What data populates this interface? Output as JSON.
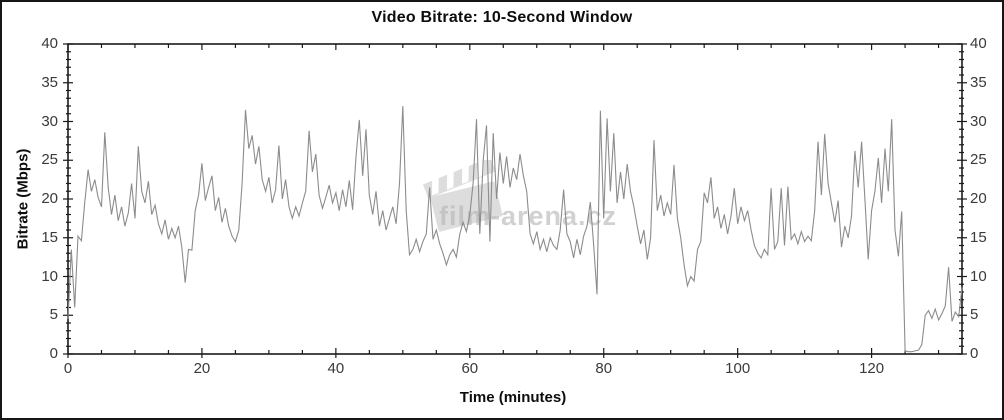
{
  "title": "Video Bitrate: 10-Second Window",
  "axes": {
    "x": {
      "label": "Time (minutes)",
      "min": 0,
      "max": 133.5,
      "major_ticks": [
        0,
        20,
        40,
        60,
        80,
        100,
        120
      ],
      "minor_step": 5
    },
    "y": {
      "label": "Bitrate (Mbps)",
      "min": 0,
      "max": 40,
      "major_ticks": [
        0,
        5,
        10,
        15,
        20,
        25,
        30,
        35,
        40
      ],
      "minor_step": 1,
      "mirrored_right_axis": true
    }
  },
  "watermark": {
    "text": "film-arena.cz",
    "icon": "clapperboard-icon"
  },
  "colors": {
    "background": "#ffffff",
    "frame": "#1a1a1a",
    "line": "#8c8c8c",
    "tick_label": "#3a3a3a",
    "watermark": "#b5b5b5"
  },
  "chart_data": {
    "type": "line",
    "title": "Video Bitrate: 10-Second Window",
    "xlabel": "Time (minutes)",
    "ylabel": "Bitrate (Mbps)",
    "xlim": [
      0,
      133.5
    ],
    "ylim": [
      0,
      40
    ],
    "grid": false,
    "legend": false,
    "x_start": 0,
    "x_step": 0.5,
    "series": [
      {
        "name": "bitrate_mbps",
        "values": [
          4.5,
          13.5,
          6.0,
          15.2,
          14.6,
          19.5,
          23.8,
          21.0,
          22.5,
          20.2,
          19.0,
          28.6,
          21.5,
          18.0,
          20.5,
          17.2,
          19.0,
          16.5,
          18.2,
          22.0,
          17.5,
          26.8,
          21.0,
          19.5,
          22.3,
          18.0,
          19.2,
          16.8,
          15.5,
          17.3,
          14.8,
          16.2,
          15.0,
          16.5,
          13.8,
          9.2,
          13.5,
          13.4,
          18.5,
          20.5,
          24.6,
          19.8,
          21.5,
          23.0,
          18.5,
          20.2,
          17.0,
          18.8,
          16.5,
          15.2,
          14.5,
          16.0,
          22.0,
          31.5,
          26.5,
          28.2,
          24.5,
          26.8,
          22.5,
          21.0,
          22.8,
          19.5,
          21.2,
          26.9,
          20.0,
          22.5,
          19.0,
          17.5,
          19.0,
          17.8,
          19.5,
          21.0,
          28.8,
          23.5,
          25.8,
          20.5,
          18.8,
          20.2,
          21.8,
          19.5,
          20.8,
          18.5,
          21.2,
          19.0,
          22.4,
          18.6,
          25.5,
          30.2,
          23.0,
          29.0,
          20.5,
          18.0,
          21.0,
          16.5,
          18.5,
          16.0,
          17.5,
          19.0,
          16.8,
          22.0,
          32.0,
          18.5,
          12.8,
          13.5,
          14.8,
          13.2,
          14.5,
          15.5,
          21.5,
          14.8,
          16.0,
          14.2,
          13.0,
          11.5,
          12.8,
          13.5,
          12.5,
          15.5,
          17.0,
          15.8,
          18.0,
          22.0,
          30.3,
          15.5,
          25.0,
          29.5,
          14.5,
          28.5,
          20.0,
          26.0,
          22.0,
          25.5,
          21.5,
          24.0,
          22.5,
          25.8,
          23.0,
          21.0,
          15.5,
          14.2,
          15.8,
          13.5,
          14.8,
          13.2,
          15.0,
          14.0,
          13.5,
          16.0,
          21.2,
          15.5,
          14.5,
          12.4,
          14.8,
          12.8,
          15.2,
          16.5,
          19.6,
          14.0,
          7.7,
          31.4,
          17.5,
          30.4,
          21.0,
          28.5,
          19.5,
          23.5,
          20.0,
          24.5,
          21.0,
          19.0,
          16.5,
          14.2,
          16.0,
          12.2,
          15.0,
          27.6,
          18.5,
          20.5,
          17.8,
          19.5,
          18.0,
          24.4,
          17.5,
          15.0,
          11.5,
          8.8,
          10.0,
          9.4,
          13.5,
          14.5,
          20.8,
          19.5,
          22.8,
          17.5,
          19.0,
          16.2,
          18.0,
          15.5,
          17.8,
          21.4,
          16.8,
          19.0,
          17.2,
          18.5,
          16.0,
          14.0,
          13.0,
          12.4,
          13.5,
          12.8,
          21.4,
          13.5,
          14.5,
          21.4,
          14.0,
          21.6,
          14.8,
          15.5,
          14.2,
          15.8,
          14.5,
          15.2,
          14.6,
          18.5,
          27.4,
          20.5,
          28.4,
          22.0,
          19.5,
          17.0,
          19.8,
          13.8,
          16.5,
          15.0,
          17.8,
          26.2,
          21.5,
          27.4,
          20.0,
          12.2,
          18.5,
          21.0,
          25.3,
          19.5,
          26.5,
          21.0,
          30.3,
          16.0,
          12.6,
          18.4,
          0.4,
          0.3,
          0.3,
          0.4,
          0.5,
          1.2,
          5.0,
          5.6,
          4.6,
          5.8,
          4.4,
          5.2,
          6.2,
          11.2,
          4.2,
          5.4,
          4.8,
          8.6
        ]
      }
    ]
  }
}
